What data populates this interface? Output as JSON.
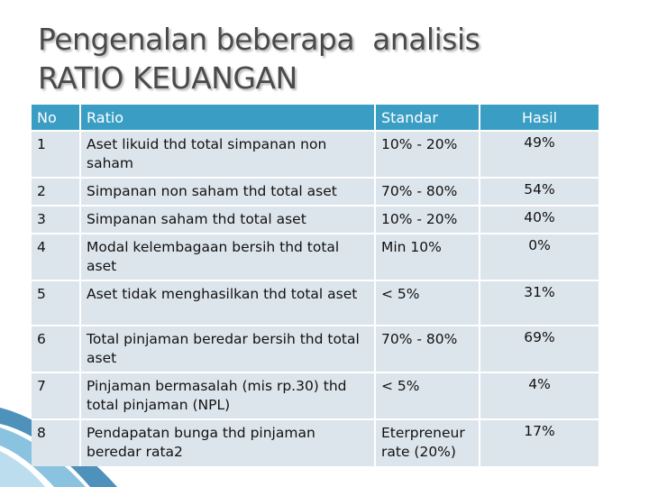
{
  "title": "Pengenalan beberapa  analisis\nRATIO KEUANGAN",
  "headers": {
    "no": "No",
    "ratio": "Ratio",
    "standar": "Standar",
    "hasil": "Hasil"
  },
  "rows": [
    {
      "no": "1",
      "ratio": "Aset likuid thd total simpanan non saham",
      "standar": "10% - 20%",
      "hasil": "49%"
    },
    {
      "no": "2",
      "ratio": "Simpanan non saham thd total aset",
      "standar": "70% - 80%",
      "hasil": "54%"
    },
    {
      "no": "3",
      "ratio": "Simpanan  saham thd total aset",
      "standar": "10% - 20%",
      "hasil": "40%"
    },
    {
      "no": "4",
      "ratio": "Modal kelembagaan bersih thd total aset",
      "standar": "Min 10%",
      "hasil": "0%"
    },
    {
      "no": "5",
      "ratio": "Aset tidak menghasilkan thd total aset",
      "standar": "< 5%",
      "hasil": "31%"
    },
    {
      "no": "6",
      "ratio": "Total pinjaman beredar bersih thd total aset",
      "standar": "70% - 80%",
      "hasil": "69%"
    },
    {
      "no": "7",
      "ratio": "Pinjaman bermasalah (mis rp.30) thd total pinjaman (NPL)",
      "standar": "< 5%",
      "hasil": "4%"
    },
    {
      "no": "8",
      "ratio": "Pendapatan bunga thd pinjaman beredar rata2",
      "standar": "Eterpreneur rate (20%)",
      "hasil": "17%"
    }
  ],
  "colors": {
    "header": "#3a9ec4",
    "cell": "#dde5ec",
    "title": "#4a4a4a"
  }
}
